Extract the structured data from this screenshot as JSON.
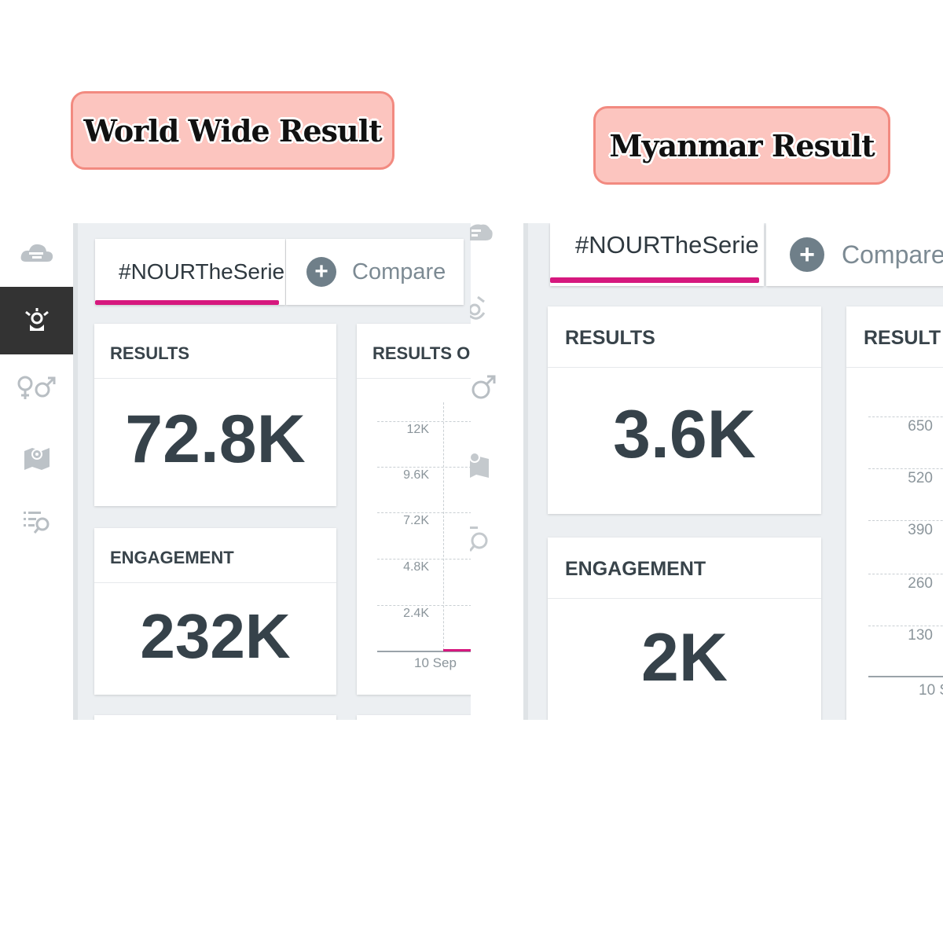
{
  "banners": {
    "world": "World Wide Result",
    "myanmar": "Myanmar Result"
  },
  "left": {
    "rail_icons": [
      "cloud-icon",
      "influencer-icon",
      "gender-icon",
      "map-icon",
      "search-list-icon"
    ],
    "tab_label": "#NOURTheSerie",
    "compare_label": "Compare",
    "results_title": "RESULTS",
    "results_value": "72.8K",
    "engagement_title": "ENGAGEMENT",
    "engagement_value": "232K",
    "chart_title": "RESULTS O",
    "chart_ticks": [
      "12K",
      "9.6K",
      "7.2K",
      "4.8K",
      "2.4K"
    ],
    "chart_xlabel": "10 Sep"
  },
  "right": {
    "tab_label": "#NOURTheSerie",
    "compare_label": "Compare",
    "results_title": "RESULTS",
    "results_value": "3.6K",
    "engagement_title": "ENGAGEMENT",
    "engagement_value": "2K",
    "chart_title": "RESULT",
    "chart_ticks": [
      "650",
      "520",
      "390",
      "260",
      "130"
    ],
    "chart_xlabel": "10 S"
  },
  "colors": {
    "accent": "#d6187e",
    "banner_fill": "#fcc5bf",
    "banner_border": "#f28a80",
    "rail_active": "#333333"
  }
}
